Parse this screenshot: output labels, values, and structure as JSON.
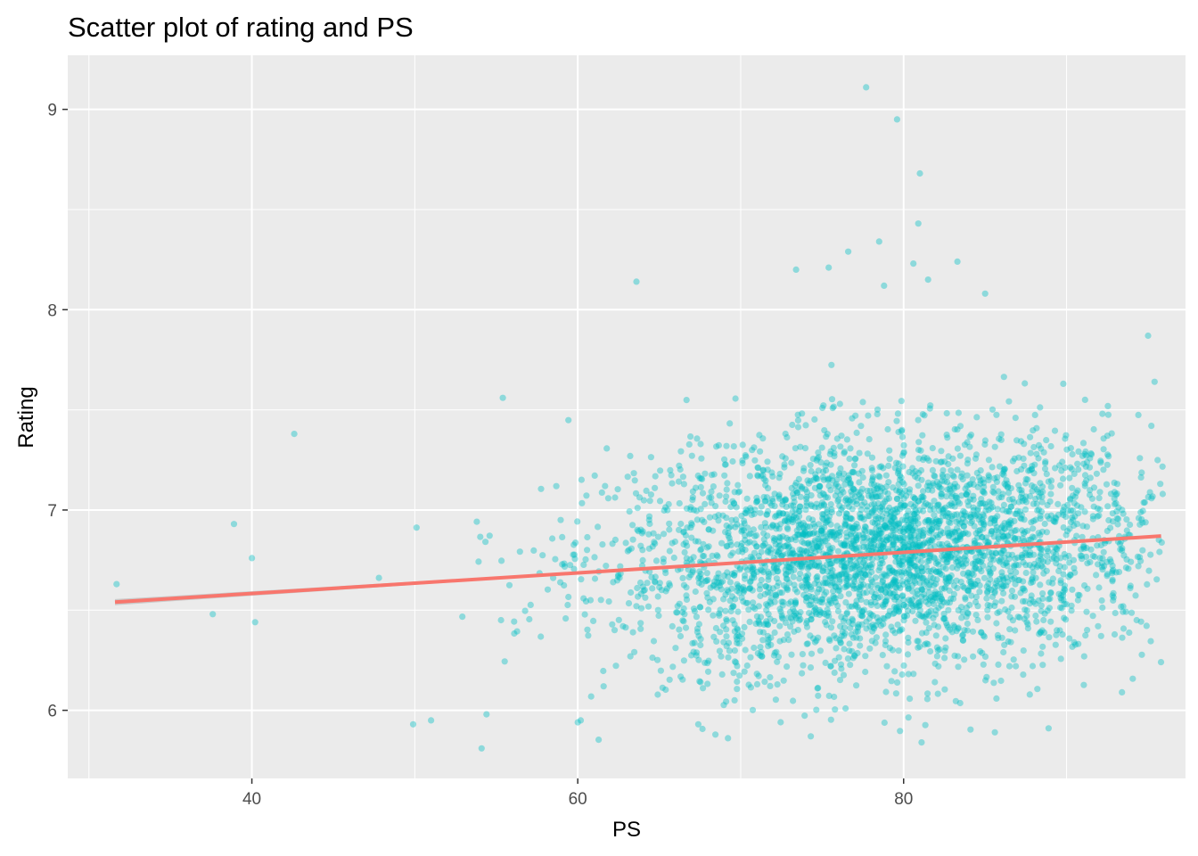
{
  "chart_data": {
    "type": "scatter",
    "title": "Scatter plot of rating and PS",
    "xlabel": "PS",
    "ylabel": "Rating",
    "xlim": [
      28.7,
      97.3
    ],
    "ylim": [
      5.66,
      9.27
    ],
    "x_ticks": [
      40,
      60,
      80
    ],
    "x_tick_labels": [
      "40",
      "60",
      "80"
    ],
    "y_ticks": [
      6,
      7,
      8,
      9
    ],
    "y_tick_labels": [
      "6",
      "7",
      "8",
      "9"
    ],
    "x_minor_ticks": [
      30,
      50,
      70,
      90
    ],
    "y_minor_ticks": [
      6.5,
      7.5,
      8.5
    ],
    "grid": true,
    "legend": "none",
    "point_color": "#00BFC4",
    "point_alpha": 0.4,
    "point_count": 3500,
    "fit_line": {
      "method": "linear",
      "color": "#F8766D",
      "x_range": [
        31.6,
        95.8
      ],
      "y_at_start": 6.54,
      "y_at_end": 6.87,
      "confidence_band_color": "#999999"
    },
    "notable_points": [
      {
        "x": 77.7,
        "y": 9.11
      },
      {
        "x": 79.6,
        "y": 8.95
      },
      {
        "x": 81.0,
        "y": 8.68
      },
      {
        "x": 80.9,
        "y": 8.43
      },
      {
        "x": 78.5,
        "y": 8.34
      },
      {
        "x": 83.3,
        "y": 8.24
      },
      {
        "x": 80.6,
        "y": 8.23
      },
      {
        "x": 63.6,
        "y": 8.14
      },
      {
        "x": 73.4,
        "y": 8.2
      },
      {
        "x": 75.4,
        "y": 8.21
      },
      {
        "x": 85.0,
        "y": 8.08
      },
      {
        "x": 76.6,
        "y": 8.29
      },
      {
        "x": 78.8,
        "y": 8.12
      },
      {
        "x": 81.5,
        "y": 8.15
      },
      {
        "x": 95.0,
        "y": 7.87
      },
      {
        "x": 95.4,
        "y": 7.64
      },
      {
        "x": 95.9,
        "y": 7.08
      },
      {
        "x": 31.7,
        "y": 6.63
      },
      {
        "x": 42.6,
        "y": 7.38
      },
      {
        "x": 55.4,
        "y": 7.56
      },
      {
        "x": 54.1,
        "y": 5.81
      },
      {
        "x": 74.3,
        "y": 5.87
      },
      {
        "x": 81.1,
        "y": 5.84
      },
      {
        "x": 85.6,
        "y": 5.89
      },
      {
        "x": 38.9,
        "y": 6.93
      },
      {
        "x": 40.0,
        "y": 6.76
      },
      {
        "x": 37.6,
        "y": 6.48
      },
      {
        "x": 40.2,
        "y": 6.44
      },
      {
        "x": 49.9,
        "y": 5.93
      },
      {
        "x": 51.0,
        "y": 5.95
      },
      {
        "x": 54.4,
        "y": 5.98
      },
      {
        "x": 60.0,
        "y": 5.94
      },
      {
        "x": 67.4,
        "y": 5.93
      },
      {
        "x": 88.9,
        "y": 5.91
      },
      {
        "x": 93.4,
        "y": 6.09
      },
      {
        "x": 94.3,
        "y": 6.45
      },
      {
        "x": 92.2,
        "y": 7.48
      },
      {
        "x": 89.8,
        "y": 7.63
      }
    ]
  }
}
